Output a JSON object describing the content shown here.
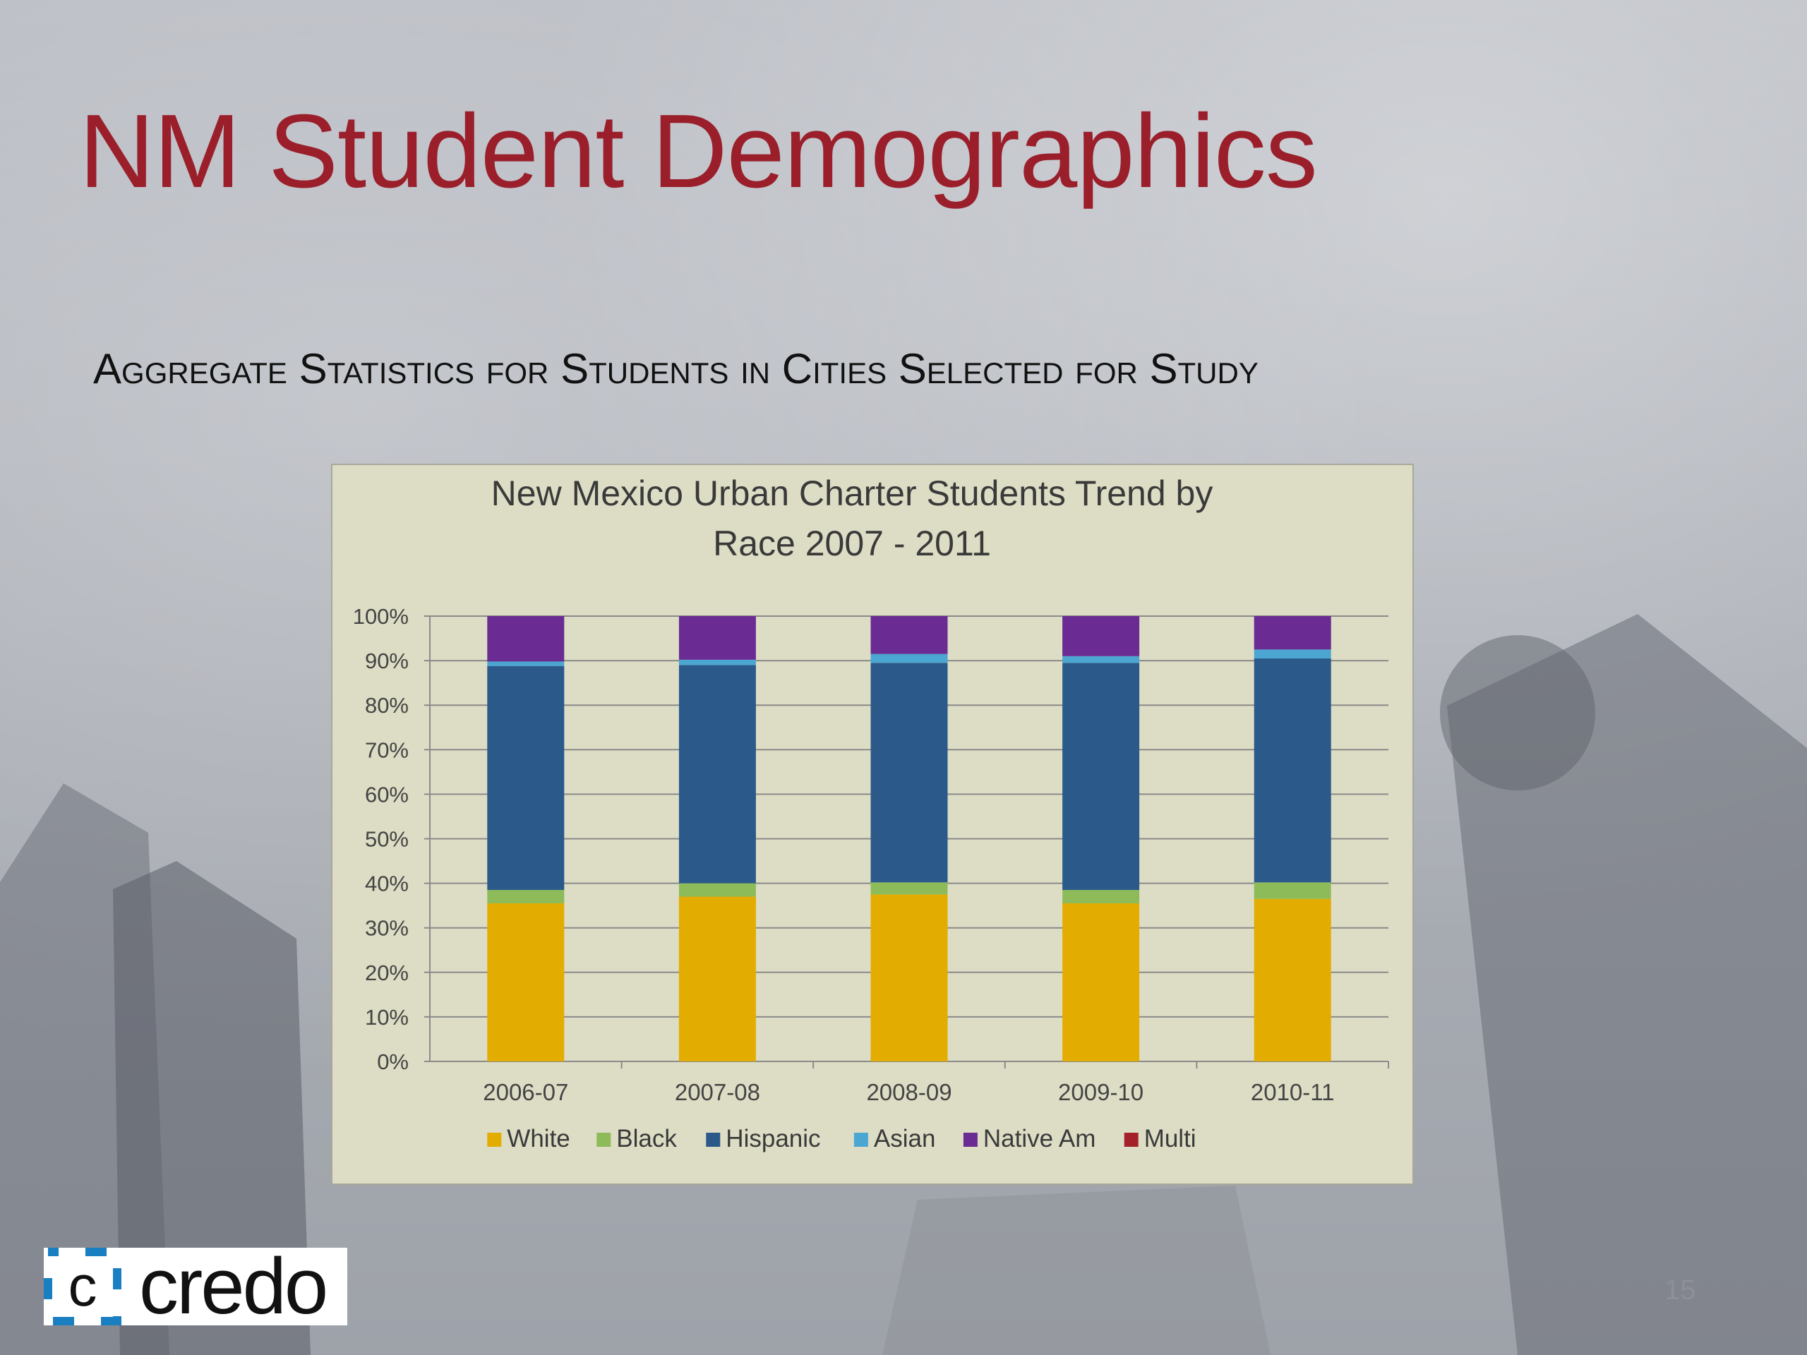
{
  "slide": {
    "title": "NM Student Demographics",
    "subtitle": "Aggregate Statistics for Students in Cities Selected for Study",
    "page_number": "15",
    "logo_text": "credo"
  },
  "colors": {
    "title": "#9a1f2b",
    "chart_bg": "#ddddc5",
    "White": "#e3ac00",
    "Black": "#8dbb5a",
    "Hispanic": "#2b5a8a",
    "Asian": "#4ca6d2",
    "Native Am": "#6a2b92",
    "Multi": "#a4212a"
  },
  "chart_data": {
    "type": "bar",
    "stacked": true,
    "title_lines": [
      "New Mexico Urban Charter Students Trend by",
      "Race 2007 - 2011"
    ],
    "categories": [
      "2006-07",
      "2007-08",
      "2008-09",
      "2009-10",
      "2010-11"
    ],
    "yticks": [
      "0%",
      "10%",
      "20%",
      "30%",
      "40%",
      "50%",
      "60%",
      "70%",
      "80%",
      "90%",
      "100%"
    ],
    "ylim": [
      0,
      100
    ],
    "grid": true,
    "legend_position": "bottom",
    "series": [
      {
        "name": "White",
        "color": "#e3ac00",
        "values": [
          35.5,
          37,
          37.5,
          35.5,
          36.5
        ]
      },
      {
        "name": "Black",
        "color": "#8dbb5a",
        "values": [
          3,
          3,
          2.7,
          3,
          3.7
        ]
      },
      {
        "name": "Hispanic",
        "color": "#2b5a8a",
        "values": [
          50.3,
          49,
          49.3,
          51,
          50.3
        ]
      },
      {
        "name": "Asian",
        "color": "#4ca6d2",
        "values": [
          1,
          1.2,
          2,
          1.5,
          2
        ]
      },
      {
        "name": "Native Am",
        "color": "#6a2b92",
        "values": [
          10.2,
          9.8,
          8.5,
          9,
          7.5
        ]
      },
      {
        "name": "Multi",
        "color": "#a4212a",
        "values": [
          0,
          0,
          0,
          0,
          0
        ]
      }
    ]
  }
}
